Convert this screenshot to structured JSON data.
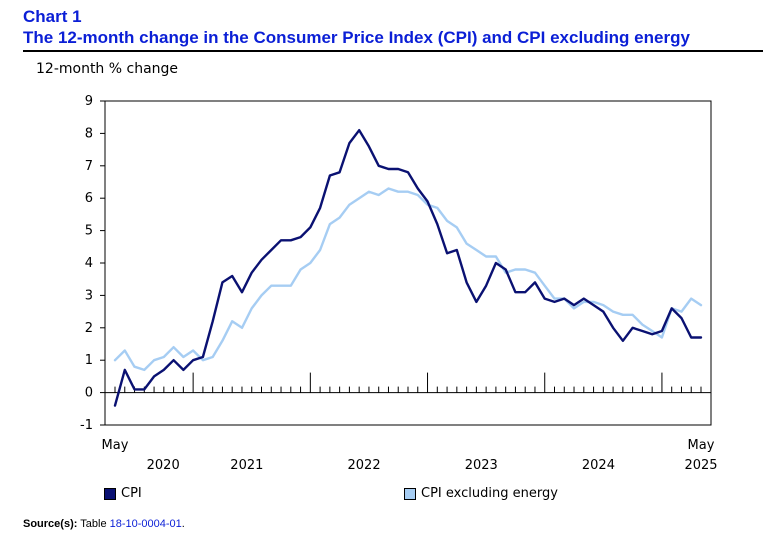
{
  "header": {
    "chart_number": "Chart 1",
    "title": "The 12-month change in the Consumer Price Index (CPI) and CPI excluding energy"
  },
  "footer": {
    "source_label": "Source(s):",
    "source_text": "Table",
    "source_link": "18-10-0004-01",
    "source_end": "."
  },
  "colors": {
    "title": "#0b1fd6",
    "cpi": "#0a1172",
    "cpi_ex_energy": "#a6cdf3"
  },
  "chart_data": {
    "type": "line",
    "title": "The 12-month change in the Consumer Price Index (CPI) and CPI excluding energy",
    "ylabel": "12-month % change",
    "xlabel": "",
    "ylim": [
      -1,
      9
    ],
    "yticks": [
      -1,
      0,
      1,
      2,
      3,
      4,
      5,
      6,
      7,
      8,
      9
    ],
    "grid": false,
    "legend_position": "bottom",
    "x_start": "May 2020",
    "x_end": "May 2025",
    "x_frequency": "monthly",
    "year_labels": [
      "2020",
      "2021",
      "2022",
      "2023",
      "2024",
      "2025"
    ],
    "edge_labels": {
      "first": "May",
      "last": "May"
    },
    "series": [
      {
        "name": "CPI",
        "color": "#0a1172",
        "values": [
          -0.4,
          0.7,
          0.1,
          0.1,
          0.5,
          0.7,
          1.0,
          0.7,
          1.0,
          1.1,
          2.2,
          3.4,
          3.6,
          3.1,
          3.7,
          4.1,
          4.4,
          4.7,
          4.7,
          4.8,
          5.1,
          5.7,
          6.7,
          6.8,
          7.7,
          8.1,
          7.6,
          7.0,
          6.9,
          6.9,
          6.8,
          6.3,
          5.9,
          5.2,
          4.3,
          4.4,
          3.4,
          2.8,
          3.3,
          4.0,
          3.8,
          3.1,
          3.1,
          3.4,
          2.9,
          2.8,
          2.9,
          2.7,
          2.9,
          2.7,
          2.5,
          2.0,
          1.6,
          2.0,
          1.9,
          1.8,
          1.9,
          2.6,
          2.3,
          1.7,
          1.7
        ]
      },
      {
        "name": "CPI excluding energy",
        "color": "#a6cdf3",
        "values": [
          1.0,
          1.3,
          0.8,
          0.7,
          1.0,
          1.1,
          1.4,
          1.1,
          1.3,
          1.0,
          1.1,
          1.6,
          2.2,
          2.0,
          2.6,
          3.0,
          3.3,
          3.3,
          3.3,
          3.8,
          4.0,
          4.4,
          5.2,
          5.4,
          5.8,
          6.0,
          6.2,
          6.1,
          6.3,
          6.2,
          6.2,
          6.1,
          5.8,
          5.7,
          5.3,
          5.1,
          4.6,
          4.4,
          4.2,
          4.2,
          3.7,
          3.8,
          3.8,
          3.7,
          3.3,
          2.9,
          2.9,
          2.6,
          2.8,
          2.8,
          2.7,
          2.5,
          2.4,
          2.4,
          2.1,
          1.9,
          1.7,
          2.6,
          2.5,
          2.9,
          2.7
        ]
      }
    ]
  }
}
